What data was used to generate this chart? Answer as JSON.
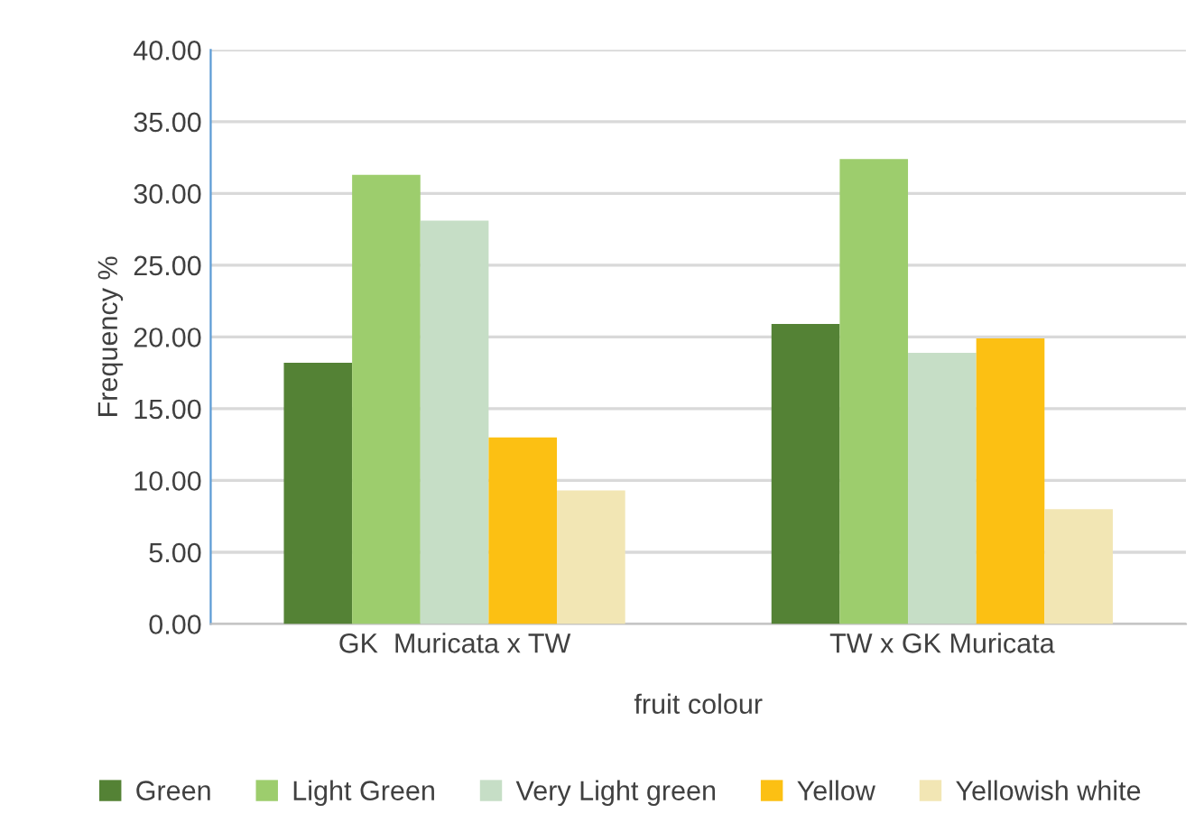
{
  "chart_data": {
    "type": "bar",
    "xlabel": "fruit colour",
    "ylabel": "Frequency %",
    "categories": [
      "GK  Muricata x TW",
      "TW x GK Muricata"
    ],
    "series": [
      {
        "name": "Green",
        "color": "#548235",
        "values": [
          18.2,
          20.9
        ]
      },
      {
        "name": "Light Green",
        "color": "#9dcd6d",
        "values": [
          31.3,
          32.4
        ]
      },
      {
        "name": "Very Light green",
        "color": "#c6dec6",
        "values": [
          28.1,
          18.9
        ]
      },
      {
        "name": "Yellow",
        "color": "#fcc013",
        "values": [
          13.0,
          19.9
        ]
      },
      {
        "name": "Yellowish white",
        "color": "#f2e6b4",
        "values": [
          9.3,
          8.0
        ]
      }
    ],
    "ylim": [
      0,
      40
    ],
    "yticks": [
      {
        "value": 0,
        "label": "0.00"
      },
      {
        "value": 5,
        "label": "5.00"
      },
      {
        "value": 10,
        "label": "10.00"
      },
      {
        "value": 15,
        "label": "15.00"
      },
      {
        "value": 20,
        "label": "20.00"
      },
      {
        "value": 25,
        "label": "25.00"
      },
      {
        "value": 30,
        "label": "30.00"
      },
      {
        "value": 35,
        "label": "35.00"
      },
      {
        "value": 40,
        "label": "40.00"
      }
    ],
    "grid": "y",
    "legend": "bottom"
  }
}
